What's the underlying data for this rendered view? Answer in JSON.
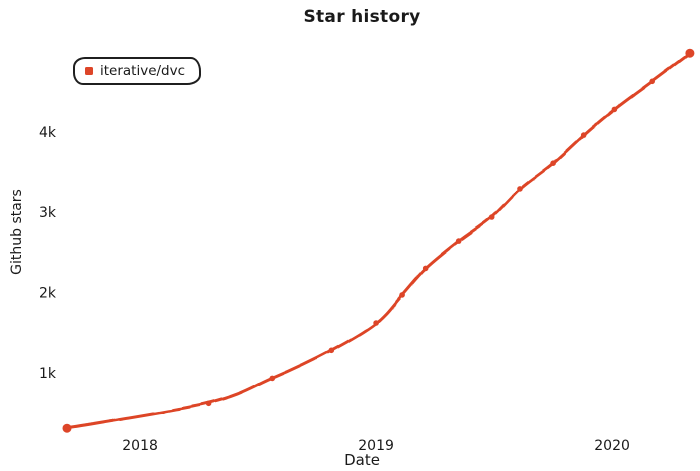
{
  "page": {
    "title": "Star history"
  },
  "legend": {
    "label": "iterative/dvc"
  },
  "axes": {
    "x_label": "Date",
    "y_label": "Github stars"
  },
  "colors": {
    "series": "#dd4528",
    "axis": "#363636",
    "tick_text": "#1a1a1a",
    "background": "#ffffff",
    "legend_border": "#1f1f1f"
  },
  "chart_data": {
    "type": "line",
    "title": "Star history",
    "xlabel": "Date",
    "ylabel": "Github stars",
    "legend_position": "top-left",
    "grid": false,
    "style": "hand-drawn-xkcd",
    "xlim": [
      2017.69,
      2020.36
    ],
    "ylim": [
      250,
      5070
    ],
    "x_ticks": [
      {
        "value": 2018,
        "label": "2018"
      },
      {
        "value": 2019,
        "label": "2019"
      },
      {
        "value": 2020,
        "label": "2020"
      }
    ],
    "y_ticks": [
      {
        "value": 1000,
        "label": "1k"
      },
      {
        "value": 2000,
        "label": "2k"
      },
      {
        "value": 3000,
        "label": "3k"
      },
      {
        "value": 4000,
        "label": "4k"
      }
    ],
    "series": [
      {
        "name": "iterative/dvc",
        "color": "#dd4528",
        "marker": "circle",
        "x_years": [
          2017.69,
          2018.29,
          2018.56,
          2018.81,
          2019.0,
          2019.11,
          2019.21,
          2019.35,
          2019.49,
          2019.61,
          2019.75,
          2019.88,
          2020.01,
          2020.17,
          2020.33
        ],
        "dates": [
          "2017-09",
          "2018-04",
          "2018-07",
          "2018-10",
          "2019-01",
          "2019-02",
          "2019-03",
          "2019-05",
          "2019-07",
          "2019-08",
          "2019-10",
          "2019-12",
          "2020-01",
          "2020-03",
          "2020-04"
        ],
        "stars": [
          310,
          620,
          930,
          1280,
          1620,
          1970,
          2300,
          2640,
          2940,
          3290,
          3610,
          3960,
          4280,
          4630,
          4980
        ]
      }
    ]
  }
}
